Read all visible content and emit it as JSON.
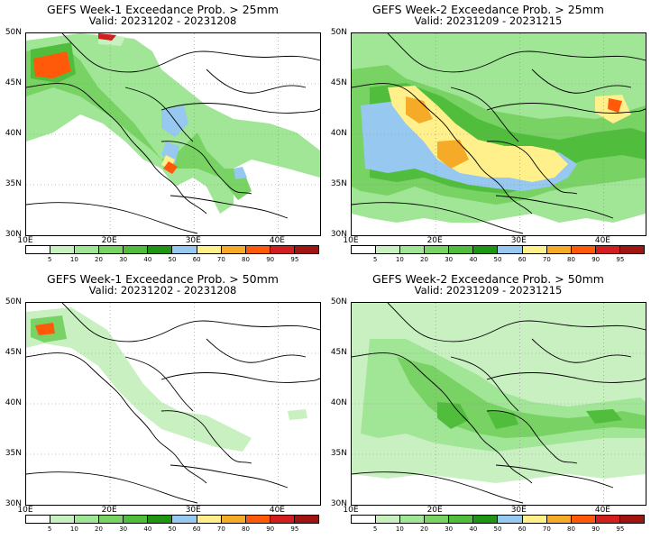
{
  "panels": [
    {
      "title": "GEFS Week-1 Exceedance Prob. > 25mm",
      "valid": "Valid: 20231202 - 20231208"
    },
    {
      "title": "GEFS Week-2 Exceedance Prob. > 25mm",
      "valid": "Valid: 20231209 - 20231215"
    },
    {
      "title": "GEFS Week-1 Exceedance Prob. > 50mm",
      "valid": "Valid: 20231202 - 20231208"
    },
    {
      "title": "GEFS Week-2 Exceedance Prob. > 50mm",
      "valid": "Valid: 20231209 - 20231215"
    }
  ],
  "lat_labels": [
    "50N",
    "45N",
    "40N",
    "35N",
    "30N"
  ],
  "lon_labels": [
    "10E",
    "20E",
    "30E",
    "40E"
  ],
  "colorbar": {
    "levels": [
      "5",
      "10",
      "20",
      "30",
      "40",
      "50",
      "60",
      "70",
      "80",
      "90",
      "95"
    ],
    "colors": [
      "#ffffff",
      "#c8f0c0",
      "#a0e696",
      "#78d264",
      "#50be3c",
      "#1e9614",
      "#96c8f0",
      "#fff08c",
      "#f5aa28",
      "#ff5a0a",
      "#d21e1e",
      "#a01414"
    ]
  }
}
